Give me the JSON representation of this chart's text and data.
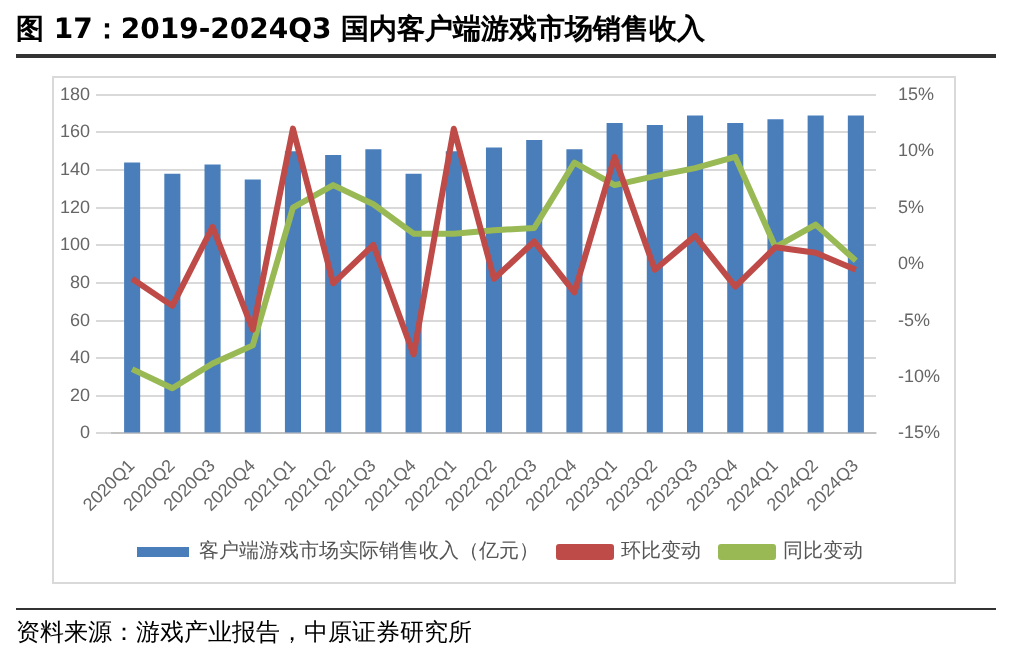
{
  "chart_data": {
    "type": "bar",
    "title": "图 17：2019-2024Q3 国内客户端游戏市场销售收入",
    "categories": [
      "2020Q1",
      "2020Q2",
      "2020Q3",
      "2020Q4",
      "2021Q1",
      "2021Q2",
      "2021Q3",
      "2021Q4",
      "2022Q1",
      "2022Q2",
      "2022Q3",
      "2022Q4",
      "2023Q1",
      "2023Q2",
      "2023Q3",
      "2023Q4",
      "2024Q1",
      "2024Q2",
      "2024Q3"
    ],
    "series": [
      {
        "name": "客户端游戏市场实际销售收入（亿元）",
        "color": "#4a7ebb",
        "values": [
          144,
          138,
          143,
          135,
          150,
          148,
          151,
          138,
          150,
          152,
          156,
          151,
          165,
          164,
          169,
          165,
          167,
          169,
          169
        ]
      },
      {
        "name": "环比变动",
        "type": "line",
        "axis": "y2",
        "color": "#be4b48",
        "values": [
          -1.3,
          -3.7,
          3.3,
          -5.8,
          12,
          -1.7,
          1.7,
          -8,
          12,
          -1.3,
          2,
          -2.5,
          9.5,
          -0.5,
          2.5,
          -2,
          1.5,
          1,
          -0.5
        ]
      },
      {
        "name": "同比变动",
        "type": "line",
        "axis": "y2",
        "color": "#98b954",
        "values": [
          -9.3,
          -11,
          -8.8,
          -7.2,
          5,
          7,
          5.3,
          2.7,
          2.7,
          3,
          3.2,
          9,
          7,
          7.8,
          8.5,
          9.5,
          1.5,
          3.5,
          0.3
        ]
      }
    ],
    "ylim": [
      0,
      180
    ],
    "yticks": [
      0,
      20,
      40,
      60,
      80,
      100,
      120,
      140,
      160,
      180
    ],
    "y2lim": [
      -15,
      15
    ],
    "y2ticks": [
      {
        "value": -15,
        "label": "-15%"
      },
      {
        "value": -10,
        "label": "-10%"
      },
      {
        "value": -5,
        "label": "-5%"
      },
      {
        "value": 0,
        "label": "0%"
      },
      {
        "value": 5,
        "label": "5%"
      },
      {
        "value": 10,
        "label": "10%"
      },
      {
        "value": 15,
        "label": "15%"
      }
    ],
    "grid": "y",
    "legend": "bottom",
    "marker": "none",
    "annotations": [
      "资料来源：游戏产业报告，中原证券研究所"
    ]
  }
}
